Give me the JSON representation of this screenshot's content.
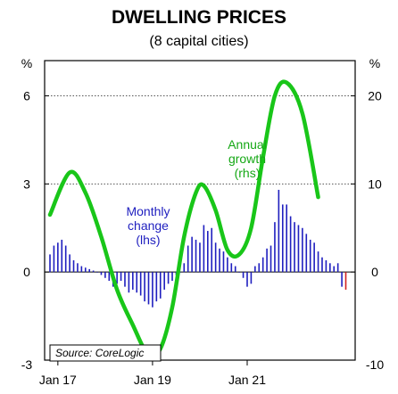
{
  "chart_data": {
    "type": "bar",
    "title": "DWELLING PRICES",
    "subtitle": "(8 capital cities)",
    "left_axis": {
      "unit": "%",
      "ticks": [
        6,
        3,
        0,
        -3
      ],
      "range": [
        -3,
        7.2
      ]
    },
    "right_axis": {
      "unit": "%",
      "ticks": [
        20,
        10,
        0,
        -10
      ],
      "range": [
        -10,
        24
      ]
    },
    "x_ticks": [
      "Jan 17",
      "Jan 19",
      "Jan 21"
    ],
    "start_month": "2016-11",
    "gridlines_left": [
      6,
      3
    ],
    "series": [
      {
        "name": "Monthly change",
        "axis": "left",
        "type": "bar",
        "color": "#1f1fbf",
        "highlight_color": "#d22222",
        "highlight_last": 1,
        "values": [
          0.6,
          0.9,
          1.0,
          1.1,
          0.9,
          0.6,
          0.4,
          0.3,
          0.2,
          0.15,
          0.1,
          0.05,
          0.0,
          -0.1,
          -0.2,
          -0.3,
          -0.5,
          -0.4,
          -0.3,
          -0.5,
          -0.7,
          -0.6,
          -0.7,
          -0.8,
          -1.0,
          -1.1,
          -1.2,
          -1.0,
          -0.9,
          -0.6,
          -0.4,
          -0.3,
          -0.1,
          0.0,
          0.3,
          0.9,
          1.2,
          1.1,
          1.0,
          1.6,
          1.4,
          1.5,
          1.0,
          0.8,
          0.7,
          0.5,
          0.3,
          0.2,
          0.0,
          -0.2,
          -0.5,
          -0.4,
          0.2,
          0.3,
          0.5,
          0.8,
          0.9,
          1.7,
          2.8,
          2.3,
          2.3,
          1.9,
          1.7,
          1.6,
          1.5,
          1.3,
          1.1,
          1.0,
          0.7,
          0.5,
          0.4,
          0.3,
          0.2,
          0.3,
          -0.5,
          -0.6
        ]
      },
      {
        "name": "Annual growth",
        "axis": "right",
        "type": "line",
        "color": "#19c619",
        "points": [
          [
            "2016-11",
            6.5
          ],
          [
            "2017-04",
            11.3
          ],
          [
            "2017-08",
            9.0
          ],
          [
            "2017-12",
            4.0
          ],
          [
            "2018-04",
            -2.0
          ],
          [
            "2018-08",
            -6.0
          ],
          [
            "2018-12",
            -9.5
          ],
          [
            "2019-03",
            -8.7
          ],
          [
            "2019-06",
            -4.0
          ],
          [
            "2019-09",
            4.0
          ],
          [
            "2019-12",
            9.0
          ],
          [
            "2020-02",
            9.8
          ],
          [
            "2020-05",
            7.0
          ],
          [
            "2020-08",
            2.5
          ],
          [
            "2020-11",
            2.0
          ],
          [
            "2021-02",
            5.0
          ],
          [
            "2021-05",
            13.0
          ],
          [
            "2021-08",
            20.0
          ],
          [
            "2021-11",
            21.5
          ],
          [
            "2022-03",
            18.0
          ],
          [
            "2022-07",
            8.5
          ]
        ]
      }
    ],
    "annotations": {
      "monthly_label": [
        "Monthly",
        "change",
        "(lhs)"
      ],
      "annual_label": [
        "Annual",
        "growth",
        "(rhs)"
      ],
      "source": "Source: CoreLogic"
    }
  }
}
